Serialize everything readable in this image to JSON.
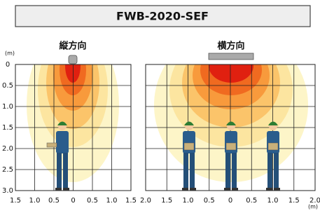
{
  "title": "FWB-2020-SEF",
  "y_unit": "(m)",
  "x_unit": "(m)",
  "panels": [
    {
      "label": "縦方向",
      "x_ticks": [
        "1.5",
        "1.0",
        "0.5",
        "0",
        "0.5",
        "1.0",
        "1.5"
      ],
      "y_ticks": [
        "0",
        "0.5",
        "1.0",
        "1.5",
        "2.0",
        "2.5",
        "3.0"
      ]
    },
    {
      "label": "横方向",
      "x_ticks": [
        "2.0",
        "1.5",
        "1.0",
        "0.5",
        "0",
        "0.5",
        "1.0",
        "1.5",
        "2.0"
      ]
    }
  ]
}
